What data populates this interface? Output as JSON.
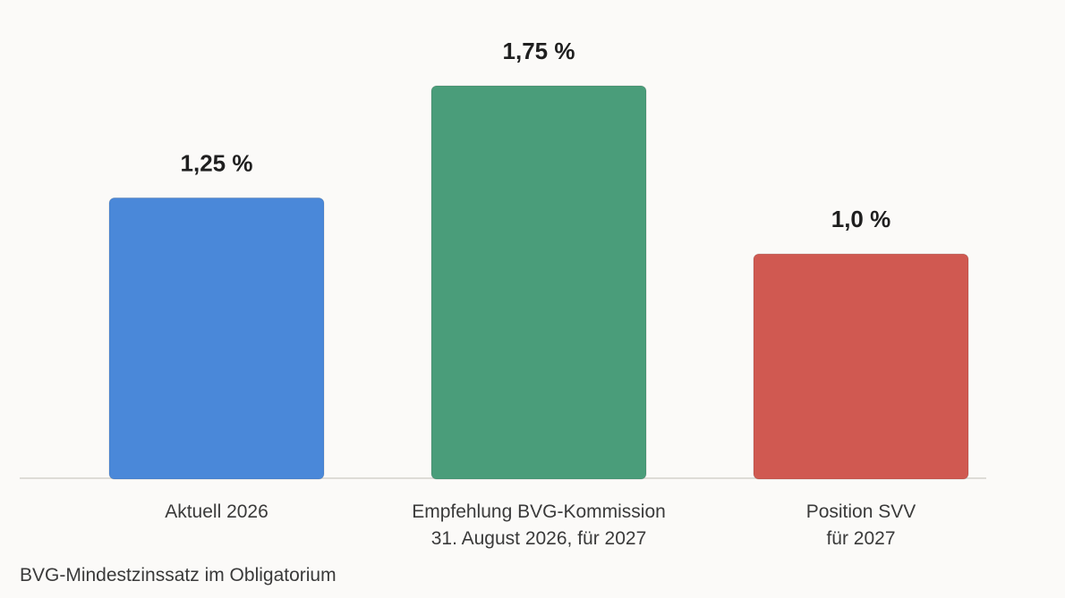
{
  "chart_data": {
    "type": "bar",
    "categories": [
      [
        "Aktuell 2026"
      ],
      [
        "Empfehlung BVG-Kommission",
        "31. August 2026, für 2027"
      ],
      [
        "Position SVV",
        "für 2027"
      ]
    ],
    "values": [
      1.25,
      1.75,
      1.0
    ],
    "value_labels": [
      "1,25 %",
      "1,75 %",
      "1,0 %"
    ],
    "colors": [
      "#4a88d9",
      "#4a9d7a",
      "#d05951"
    ],
    "ylim": [
      0,
      1.75
    ],
    "grid": false,
    "legend": "none",
    "caption": "BVG-Mindestzinssatz im Obligatorium"
  }
}
